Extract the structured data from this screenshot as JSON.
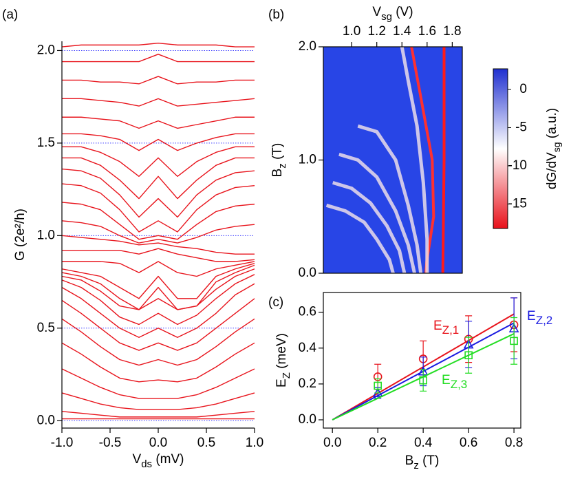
{
  "chart_data": [
    {
      "type": "line",
      "panel": "(a)",
      "xlabel": [
        "V",
        "ds",
        " (mV)"
      ],
      "ylabel": [
        "G (2e²/h)"
      ],
      "x": [
        -1.0,
        -0.8,
        -0.6,
        -0.4,
        -0.2,
        0.0,
        0.2,
        0.4,
        0.6,
        0.8,
        1.0
      ],
      "xlim": [
        -1.0,
        1.0
      ],
      "xticks": [
        {
          "value": -1.0,
          "label": "-1.0"
        },
        {
          "value": -0.5,
          "label": "-0.5"
        },
        {
          "value": 0.0,
          "label": "0.0"
        },
        {
          "value": 0.5,
          "label": "0.5"
        },
        {
          "value": 1.0,
          "label": "1.0"
        }
      ],
      "ylim": [
        -0.04,
        2.05
      ],
      "yticks": [
        {
          "value": 0.0,
          "label": "0.0"
        },
        {
          "value": 0.5,
          "label": "0.5"
        },
        {
          "value": 1.0,
          "label": "1.0"
        },
        {
          "value": 1.5,
          "label": "1.5"
        },
        {
          "value": 2.0,
          "label": "2.0"
        }
      ],
      "grid": {
        "style": "dotted",
        "color": "#3a3aff"
      },
      "color": "#e8141c",
      "series": [
        {
          "values": [
            0.01,
            0.01,
            0.01,
            0.01,
            0.01,
            0.01,
            0.01,
            0.01,
            0.01,
            0.01,
            0.01
          ]
        },
        {
          "values": [
            0.05,
            0.04,
            0.03,
            0.02,
            0.02,
            0.02,
            0.02,
            0.02,
            0.03,
            0.04,
            0.05
          ]
        },
        {
          "values": [
            0.15,
            0.12,
            0.09,
            0.07,
            0.06,
            0.06,
            0.06,
            0.07,
            0.09,
            0.12,
            0.15
          ]
        },
        {
          "values": [
            0.28,
            0.23,
            0.18,
            0.14,
            0.12,
            0.12,
            0.12,
            0.14,
            0.18,
            0.23,
            0.28
          ]
        },
        {
          "values": [
            0.42,
            0.36,
            0.29,
            0.23,
            0.21,
            0.22,
            0.21,
            0.23,
            0.29,
            0.36,
            0.42
          ]
        },
        {
          "values": [
            0.55,
            0.48,
            0.4,
            0.33,
            0.3,
            0.33,
            0.3,
            0.33,
            0.4,
            0.48,
            0.55
          ]
        },
        {
          "values": [
            0.65,
            0.58,
            0.5,
            0.42,
            0.38,
            0.42,
            0.38,
            0.42,
            0.5,
            0.58,
            0.66
          ]
        },
        {
          "values": [
            0.72,
            0.66,
            0.58,
            0.5,
            0.45,
            0.5,
            0.45,
            0.5,
            0.58,
            0.68,
            0.74
          ]
        },
        {
          "values": [
            0.76,
            0.72,
            0.65,
            0.56,
            0.52,
            0.58,
            0.52,
            0.57,
            0.66,
            0.74,
            0.79
          ]
        },
        {
          "values": [
            0.78,
            0.76,
            0.7,
            0.62,
            0.6,
            0.66,
            0.6,
            0.62,
            0.71,
            0.78,
            0.82
          ]
        },
        {
          "values": [
            0.8,
            0.78,
            0.74,
            0.66,
            0.6,
            0.72,
            0.6,
            0.62,
            0.75,
            0.8,
            0.84
          ]
        },
        {
          "values": [
            0.82,
            0.8,
            0.78,
            0.72,
            0.66,
            0.78,
            0.66,
            0.66,
            0.78,
            0.82,
            0.85
          ]
        },
        {
          "values": [
            0.86,
            0.86,
            0.86,
            0.85,
            0.8,
            0.86,
            0.8,
            0.78,
            0.82,
            0.84,
            0.86
          ]
        },
        {
          "values": [
            0.92,
            0.92,
            0.92,
            0.92,
            0.9,
            0.93,
            0.9,
            0.88,
            0.86,
            0.86,
            0.87
          ]
        },
        {
          "values": [
            1.0,
            0.99,
            0.98,
            0.97,
            0.95,
            0.96,
            0.94,
            0.93,
            0.91,
            0.9,
            0.9
          ]
        },
        {
          "values": [
            1.08,
            1.07,
            1.05,
            1.0,
            0.96,
            0.98,
            0.96,
            0.99,
            1.03,
            1.05,
            1.06
          ]
        },
        {
          "values": [
            1.18,
            1.17,
            1.14,
            1.06,
            0.98,
            1.0,
            0.98,
            1.06,
            1.13,
            1.16,
            1.17
          ]
        },
        {
          "values": [
            1.28,
            1.27,
            1.23,
            1.14,
            1.02,
            1.08,
            1.02,
            1.14,
            1.22,
            1.26,
            1.27
          ]
        },
        {
          "values": [
            1.36,
            1.35,
            1.31,
            1.22,
            1.1,
            1.2,
            1.1,
            1.22,
            1.3,
            1.34,
            1.35
          ]
        },
        {
          "values": [
            1.42,
            1.42,
            1.38,
            1.3,
            1.2,
            1.32,
            1.2,
            1.3,
            1.38,
            1.42,
            1.42
          ]
        },
        {
          "values": [
            1.48,
            1.48,
            1.45,
            1.4,
            1.32,
            1.42,
            1.32,
            1.4,
            1.45,
            1.48,
            1.48
          ]
        },
        {
          "values": [
            1.55,
            1.55,
            1.54,
            1.52,
            1.46,
            1.52,
            1.46,
            1.5,
            1.53,
            1.55,
            1.55
          ]
        },
        {
          "values": [
            1.64,
            1.64,
            1.63,
            1.62,
            1.58,
            1.62,
            1.58,
            1.6,
            1.62,
            1.64,
            1.64
          ]
        },
        {
          "values": [
            1.74,
            1.74,
            1.73,
            1.72,
            1.7,
            1.74,
            1.7,
            1.71,
            1.72,
            1.73,
            1.74
          ]
        },
        {
          "values": [
            1.84,
            1.84,
            1.83,
            1.83,
            1.82,
            1.86,
            1.82,
            1.83,
            1.83,
            1.84,
            1.84
          ]
        },
        {
          "values": [
            1.94,
            1.94,
            1.94,
            1.94,
            1.94,
            1.98,
            1.94,
            1.94,
            1.94,
            1.94,
            1.94
          ]
        },
        {
          "values": [
            2.02,
            2.03,
            2.03,
            2.03,
            2.03,
            2.04,
            2.03,
            2.03,
            2.03,
            2.02,
            2.02
          ]
        }
      ]
    },
    {
      "type": "heatmap",
      "panel": "(b)",
      "xlabel": [
        "V",
        "sg",
        " (V)"
      ],
      "ylabel": [
        "B",
        "z",
        " (T)"
      ],
      "xaxis_position": "top",
      "xlim": [
        0.775,
        1.88
      ],
      "xticks": [
        {
          "value": 1.0,
          "label": "1.0"
        },
        {
          "value": 1.2,
          "label": "1.2"
        },
        {
          "value": 1.4,
          "label": "1.4"
        },
        {
          "value": 1.6,
          "label": "1.6"
        },
        {
          "value": 1.8,
          "label": "1.8"
        }
      ],
      "ylim": [
        0.0,
        2.0
      ],
      "yticks": [
        {
          "value": 0.0,
          "label": "0.0"
        },
        {
          "value": 1.0,
          "label": "1.0"
        },
        {
          "value": 2.0,
          "label": "2.0"
        }
      ],
      "background": "#2845e6",
      "ridges": [
        {
          "color": "#ff1a1a",
          "x": [
            1.735,
            1.735,
            1.735,
            1.73,
            1.725
          ],
          "y": [
            2.0,
            1.5,
            1.0,
            0.5,
            0.0
          ]
        },
        {
          "color": "#ff3030",
          "x": [
            1.476,
            1.559,
            1.641,
            1.652,
            1.597,
            1.59
          ],
          "y": [
            2.0,
            1.5,
            1.0,
            0.5,
            0.1,
            0.0
          ]
        },
        {
          "color": "#f6e6ea",
          "x": [
            1.4,
            1.45,
            1.52,
            1.57,
            1.6,
            1.6
          ],
          "y": [
            2.0,
            1.7,
            1.3,
            0.8,
            0.3,
            0.0
          ]
        },
        {
          "color": "#f6e6ea",
          "x": [
            1.05,
            1.2,
            1.35,
            1.45,
            1.52,
            1.55
          ],
          "y": [
            1.3,
            1.25,
            1.0,
            0.6,
            0.25,
            0.0
          ]
        },
        {
          "color": "#f6e6ea",
          "x": [
            0.9,
            1.05,
            1.2,
            1.35,
            1.45,
            1.5
          ],
          "y": [
            1.05,
            1.0,
            0.85,
            0.55,
            0.25,
            0.0
          ]
        },
        {
          "color": "#f6e6ea",
          "x": [
            0.85,
            1.0,
            1.15,
            1.28,
            1.38,
            1.42
          ],
          "y": [
            0.8,
            0.75,
            0.62,
            0.42,
            0.2,
            0.0
          ]
        },
        {
          "color": "#f6e6ea",
          "x": [
            0.8,
            0.95,
            1.1,
            1.2,
            1.3,
            1.33
          ],
          "y": [
            0.6,
            0.55,
            0.45,
            0.3,
            0.12,
            0.0
          ]
        }
      ],
      "colorbar": {
        "label": [
          "dG/dV",
          "sg",
          " (a.u.)"
        ],
        "clim": [
          -18.2,
          2.7
        ],
        "ticks": [
          0,
          -5,
          -10,
          -15
        ],
        "colormap": [
          "#e8101a",
          "#ffffff",
          "#2030d0"
        ]
      }
    },
    {
      "type": "scatter",
      "panel": "(c)",
      "xlabel": [
        "B",
        "z",
        " (T)"
      ],
      "ylabel": [
        "E",
        "Z",
        " (meV)"
      ],
      "xlim": [
        -0.04,
        0.83
      ],
      "xticks": [
        {
          "value": 0.0,
          "label": "0.0"
        },
        {
          "value": 0.2,
          "label": "0.2"
        },
        {
          "value": 0.4,
          "label": "0.4"
        },
        {
          "value": 0.6,
          "label": "0.6"
        },
        {
          "value": 0.8,
          "label": "0.8"
        }
      ],
      "ylim": [
        -0.046,
        0.71
      ],
      "yticks": [
        {
          "value": 0.0,
          "label": "0.0"
        },
        {
          "value": 0.2,
          "label": "0.2"
        },
        {
          "value": 0.4,
          "label": "0.4"
        },
        {
          "value": 0.6,
          "label": "0.6"
        }
      ],
      "series": [
        {
          "name": [
            "E",
            "Z,1"
          ],
          "color": "#e8141c",
          "marker": "circle",
          "x": [
            0.2,
            0.4,
            0.6,
            0.8
          ],
          "values": [
            0.24,
            0.34,
            0.45,
            0.53
          ],
          "errors": [
            0.07,
            0.1,
            0.13,
            0.15
          ],
          "fit": {
            "x": [
              0.0,
              0.8
            ],
            "y": [
              0.0,
              0.59
            ]
          }
        },
        {
          "name": [
            "E",
            "Z,2"
          ],
          "color": "#1a1ae0",
          "marker": "triangle",
          "x": [
            0.2,
            0.4,
            0.6,
            0.8
          ],
          "values": [
            0.15,
            0.27,
            0.42,
            0.51
          ],
          "errors": [
            0.03,
            0.08,
            0.13,
            0.17
          ],
          "fit": {
            "x": [
              0.0,
              0.8
            ],
            "y": [
              0.0,
              0.54
            ]
          }
        },
        {
          "name": [
            "E",
            "Z,3"
          ],
          "color": "#22dd22",
          "marker": "square",
          "x": [
            0.2,
            0.4,
            0.6,
            0.8
          ],
          "values": [
            0.19,
            0.22,
            0.36,
            0.44
          ],
          "errors": [
            0.04,
            0.06,
            0.1,
            0.13
          ],
          "fit": {
            "x": [
              0.0,
              0.8
            ],
            "y": [
              0.0,
              0.48
            ]
          }
        }
      ]
    }
  ]
}
